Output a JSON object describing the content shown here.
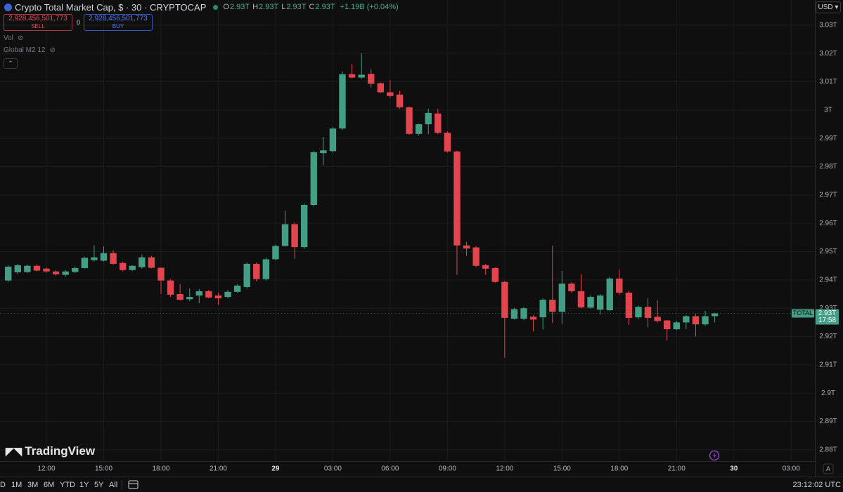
{
  "header": {
    "title": "Crypto Total Market Cap, $ · 30 · CRYPTOCAP",
    "ohlc": [
      {
        "key": "O",
        "value": "2.93T"
      },
      {
        "key": "H",
        "value": "2.93T"
      },
      {
        "key": "L",
        "value": "2.93T"
      },
      {
        "key": "C",
        "value": "2.93T"
      }
    ],
    "change": "+1.19B (+0.04%)"
  },
  "trade": {
    "sell_price": "2,928,456,501,773",
    "sell": "SELL",
    "spread": "0",
    "buy_price": "2,928,456,501,773",
    "buy": "BUY"
  },
  "indicators": [
    "Vol",
    "Global M2 12"
  ],
  "currency": "USD",
  "logo": "TradingView",
  "auto_button": "A",
  "ranges": [
    "D",
    "1M",
    "3M",
    "6M",
    "YTD",
    "1Y",
    "5Y",
    "All"
  ],
  "clock": "23:12:02 UTC",
  "chart_data": {
    "type": "candlestick",
    "symbol_tag": "TOTAL",
    "last_price_label": "2.93T",
    "countdown": "17:58",
    "up_color": "#429e84",
    "down_color": "#e3454f",
    "grid": true,
    "ylim": [
      2.876,
      3.0389
    ],
    "yticks": [
      {
        "value": 3.03,
        "label": "3.03T"
      },
      {
        "value": 3.02,
        "label": "3.02T"
      },
      {
        "value": 3.01,
        "label": "3.01T"
      },
      {
        "value": 3,
        "label": "3T"
      },
      {
        "value": 2.99,
        "label": "2.99T"
      },
      {
        "value": 2.98,
        "label": "2.98T"
      },
      {
        "value": 2.97,
        "label": "2.97T"
      },
      {
        "value": 2.96,
        "label": "2.96T"
      },
      {
        "value": 2.95,
        "label": "2.95T"
      },
      {
        "value": 2.94,
        "label": "2.94T"
      },
      {
        "value": 2.93,
        "label": "2.93T"
      },
      {
        "value": 2.92,
        "label": "2.92T"
      },
      {
        "value": 2.91,
        "label": "2.91T"
      },
      {
        "value": 2.9,
        "label": "2.9T"
      },
      {
        "value": 2.89,
        "label": "2.89T"
      },
      {
        "value": 2.88,
        "label": "2.88T"
      }
    ],
    "categories": [
      null,
      null,
      null,
      null,
      "12:00",
      null,
      null,
      null,
      null,
      null,
      "15:00",
      null,
      null,
      null,
      null,
      null,
      "18:00",
      null,
      null,
      null,
      null,
      null,
      "21:00",
      null,
      null,
      null,
      null,
      null,
      "29",
      null,
      null,
      null,
      null,
      null,
      "03:00",
      null,
      null,
      null,
      null,
      null,
      "06:00",
      null,
      null,
      null,
      null,
      null,
      "09:00",
      null,
      null,
      null,
      null,
      null,
      "12:00",
      null,
      null,
      null,
      null,
      null,
      "15:00",
      null,
      null,
      null,
      null,
      null,
      "18:00",
      null,
      null,
      null,
      null,
      null,
      "21:00",
      null,
      null,
      null,
      null,
      null,
      "30",
      null,
      null,
      null,
      null,
      null,
      "03:00"
    ],
    "open": [
      2.9398,
      2.9427,
      2.9428,
      2.945,
      2.944,
      2.943,
      2.9418,
      2.9428,
      2.9442,
      2.947,
      2.9468,
      2.9495,
      2.946,
      2.9435,
      2.9445,
      2.948,
      2.9443,
      2.9398,
      2.935,
      2.9332,
      2.9345,
      2.936,
      2.9345,
      2.934,
      2.9358,
      2.9375,
      2.9457,
      2.9403,
      2.9473,
      2.952,
      2.9597,
      2.9516,
      2.9665,
      2.9848,
      2.9855,
      2.9935,
      3.0127,
      3.0115,
      3.0128,
      3.0095,
      3.0063,
      3.0055,
      3.001,
      2.9916,
      2.995,
      2.9988,
      2.992,
      2.9854,
      2.9522,
      2.9515,
      2.9452,
      2.9442,
      2.9393,
      2.9263,
      2.9263,
      2.927,
      2.9268,
      2.933,
      2.9288,
      2.9387,
      2.936,
      2.9302,
      2.9295,
      2.9293,
      2.9405,
      2.9355,
      2.9268,
      2.9305,
      2.927,
      2.9257,
      2.9226,
      2.925,
      2.9272,
      2.9243,
      2.9272,
      null,
      null,
      null,
      null,
      null,
      null,
      null,
      null
    ],
    "high": [
      2.9452,
      2.9457,
      2.9455,
      2.9455,
      2.9445,
      2.9435,
      2.9435,
      2.9448,
      2.9482,
      2.9523,
      2.9518,
      2.9505,
      2.9465,
      2.9452,
      2.949,
      2.9485,
      2.9445,
      2.9403,
      2.9385,
      2.937,
      2.9368,
      2.9365,
      2.9355,
      2.9365,
      2.9385,
      2.9462,
      2.9462,
      2.948,
      2.9525,
      2.9645,
      2.9603,
      2.967,
      2.9856,
      2.9905,
      2.994,
      3.0137,
      3.0162,
      3.0201,
      3.0145,
      3.0098,
      3.0105,
      3.0068,
      3.0013,
      2.9953,
      3.0005,
      3.0005,
      2.9925,
      2.9857,
      2.9535,
      2.952,
      2.9457,
      2.9445,
      2.9397,
      2.9302,
      2.9305,
      2.9275,
      2.9335,
      2.9521,
      2.9432,
      2.9392,
      2.942,
      2.9345,
      2.935,
      2.9412,
      2.9437,
      2.9362,
      2.931,
      2.9335,
      2.9328,
      2.9259,
      2.9255,
      2.9276,
      2.9281,
      2.9291,
      2.9284,
      null,
      null,
      null,
      null,
      null,
      null,
      null,
      null
    ],
    "low": [
      2.9393,
      2.942,
      2.9425,
      2.943,
      2.9425,
      2.9415,
      2.9412,
      2.9425,
      2.944,
      2.9465,
      2.9465,
      2.9453,
      2.943,
      2.9432,
      2.944,
      2.9441,
      2.935,
      2.934,
      2.9328,
      2.9325,
      2.9318,
      2.9335,
      2.9312,
      2.9335,
      2.9355,
      2.937,
      2.9395,
      2.9398,
      2.947,
      2.9518,
      2.9475,
      2.951,
      2.966,
      2.9805,
      2.985,
      2.993,
      3.0112,
      3.011,
      3.008,
      3.006,
      3.0043,
      3.0005,
      2.9913,
      2.991,
      2.9915,
      2.9915,
      2.985,
      2.9418,
      2.9485,
      2.9445,
      2.9418,
      2.939,
      2.9125,
      2.926,
      2.9258,
      2.9218,
      2.9225,
      2.9248,
      2.9244,
      2.9355,
      2.93,
      2.9298,
      2.9277,
      2.929,
      2.9347,
      2.9241,
      2.9263,
      2.9233,
      2.925,
      2.9186,
      2.9222,
      2.9226,
      2.92,
      2.9238,
      2.925,
      null,
      null,
      null,
      null,
      null,
      null,
      null,
      null
    ],
    "close": [
      2.9447,
      2.9452,
      2.945,
      2.9433,
      2.943,
      2.942,
      2.943,
      2.9442,
      2.9478,
      2.948,
      2.9495,
      2.9457,
      2.9435,
      2.945,
      2.948,
      2.9443,
      2.9398,
      2.9348,
      2.933,
      2.934,
      2.936,
      2.9338,
      2.9335,
      2.9358,
      2.938,
      2.9457,
      2.9403,
      2.9473,
      2.952,
      2.9597,
      2.9516,
      2.9665,
      2.9851,
      2.9858,
      2.9935,
      3.0127,
      3.0115,
      3.0125,
      3.0093,
      3.0063,
      3.005,
      3.001,
      2.9916,
      2.995,
      2.999,
      2.992,
      2.9854,
      2.9522,
      2.9511,
      2.945,
      2.944,
      2.9393,
      2.9266,
      2.9297,
      2.93,
      2.926,
      2.933,
      2.9288,
      2.9387,
      2.936,
      2.9303,
      2.934,
      2.9345,
      2.9405,
      2.9355,
      2.9266,
      2.9305,
      2.9266,
      2.9255,
      2.9226,
      2.925,
      2.9272,
      2.9243,
      2.9272,
      2.9282,
      null,
      null,
      null,
      null,
      null,
      null,
      null,
      null
    ]
  }
}
